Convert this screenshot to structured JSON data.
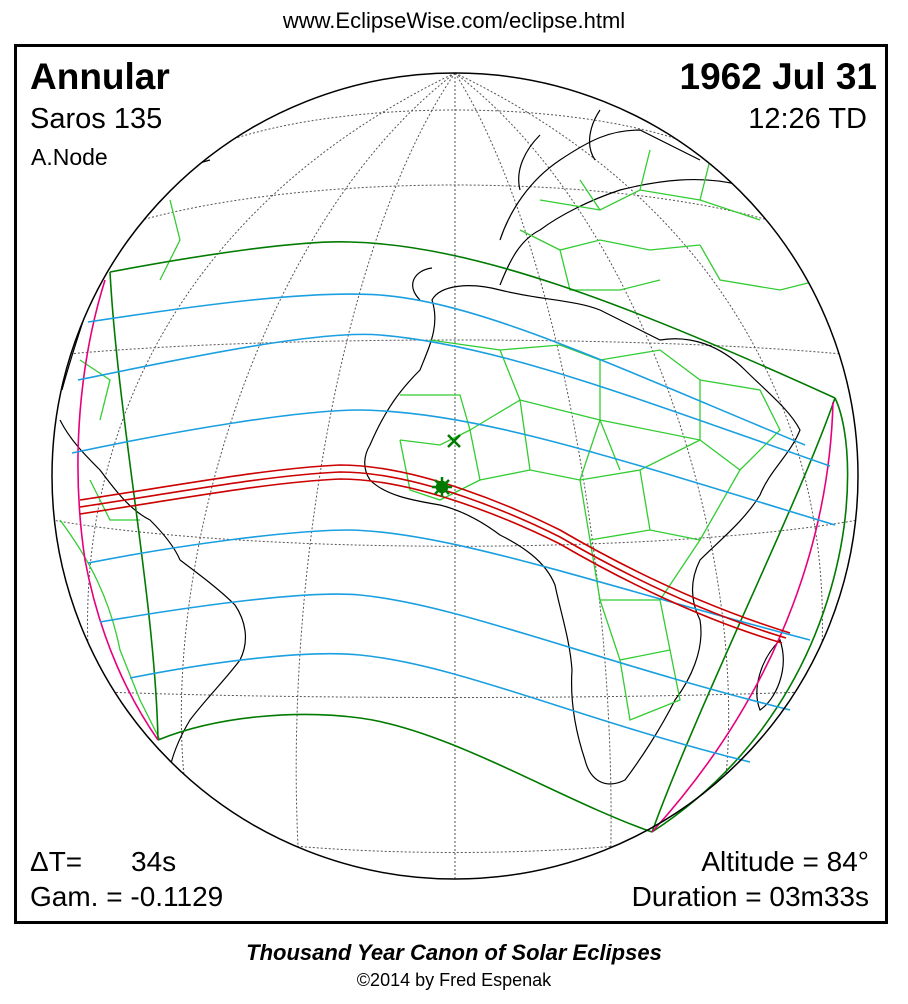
{
  "header": {
    "url": "www.EclipseWise.com/eclipse.html"
  },
  "eclipse": {
    "type": "Annular",
    "date": "1962 Jul 31",
    "saros": "Saros 135",
    "time": "12:26 TD",
    "node": "A.Node"
  },
  "stats": {
    "delta_t_label": "ΔT=",
    "delta_t_value": "34s",
    "gamma": "Gam. = -0.1129",
    "altitude": "Altitude = 84°",
    "duration": "Duration = 03m33s"
  },
  "footer": {
    "title": "Thousand Year Canon of Solar Eclipses",
    "copyright": "©2014 by Fred Espenak"
  },
  "colors": {
    "graticule": "#555555",
    "coastline": "#000000",
    "borders": "#33cc33",
    "penumbra_limits": "#007a00",
    "shadow_contours": "#1a9fe0",
    "central_path": "#cc0000",
    "rise_set_curves": "#e6007e",
    "greatest_eclipse_marker": "#007a00"
  },
  "markers": {
    "greatest_eclipse": "star-marker",
    "greatest_duration": "x-marker"
  }
}
